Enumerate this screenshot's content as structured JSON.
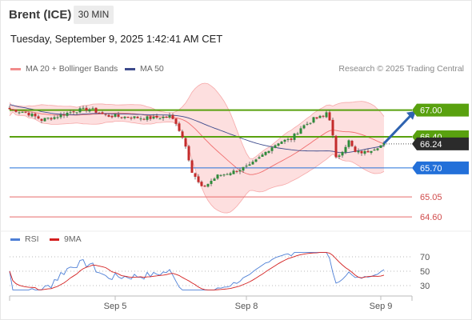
{
  "header": {
    "instrument": "Brent (ICE)",
    "timeframe": "30 MIN",
    "datetime": "Tuesday, September 9, 2025 1:42:41 AM CET"
  },
  "legend": {
    "bollinger_label": "MA 20 + Bollinger Bands",
    "ma50_label": "MA 50",
    "copyright": "Research © 2025 Trading Central",
    "rsi_label": "RSI",
    "rsi_ma_label": "9MA"
  },
  "colors": {
    "resistance": "#59a10f",
    "support": "#2370d9",
    "target_red": "#e86a6a",
    "current": "#2b2b2b",
    "ma50": "#3d4a8c",
    "bollinger": "#f06e6e",
    "bollinger_fill": "#fcd4d4",
    "rsi": "#4d7fd6",
    "rsi_ma": "#d42020",
    "candle_up": "#2e8b3a",
    "candle_down": "#c42b2b"
  },
  "chart_data": [
    {
      "type": "candlestick",
      "ylim": [
        64.35,
        67.55
      ],
      "x_ticks": [
        {
          "label": "Sep 5",
          "index": 33
        },
        {
          "label": "Sep 8",
          "index": 74
        },
        {
          "label": "Sep 9",
          "index": 116
        }
      ],
      "levels": [
        {
          "value": 67.0,
          "label": "67.00",
          "kind": "resistance"
        },
        {
          "value": 66.4,
          "label": "66.40",
          "kind": "resistance"
        },
        {
          "value": 66.24,
          "label": "66.24",
          "kind": "current"
        },
        {
          "value": 65.7,
          "label": "65.70",
          "kind": "support"
        },
        {
          "value": 65.05,
          "label": "65.05",
          "kind": "target"
        },
        {
          "value": 64.6,
          "label": "64.60",
          "kind": "target"
        }
      ],
      "forecast_arrow": {
        "from": [
          117,
          66.25
        ],
        "to": [
          125,
          66.98
        ]
      },
      "ohlc": []
    },
    {
      "type": "line",
      "title": "RSI",
      "ylim": [
        20,
        80
      ],
      "y_ticks": [
        70,
        50,
        30
      ],
      "series": [
        {
          "name": "RSI",
          "values": []
        },
        {
          "name": "9MA",
          "values": []
        }
      ]
    }
  ]
}
